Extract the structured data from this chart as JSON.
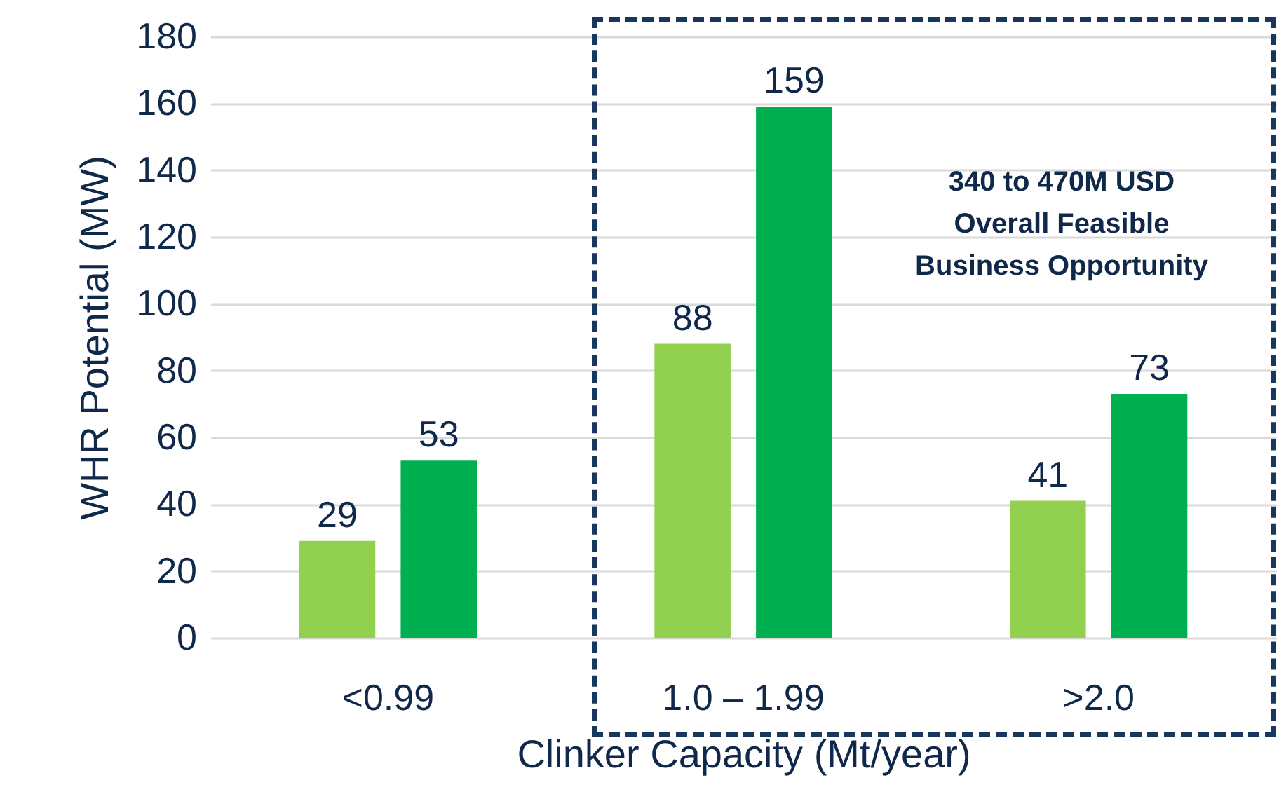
{
  "chart_data": {
    "type": "bar",
    "xlabel": "Clinker Capacity (Mt/year)",
    "ylabel": "WHR Potential (MW)",
    "categories": [
      "<0.99",
      "1.0 – 1.99",
      ">2.0"
    ],
    "series": [
      {
        "color": "#92d050",
        "values": [
          29,
          88,
          41
        ]
      },
      {
        "color": "#00b050",
        "values": [
          53,
          159,
          73
        ]
      }
    ],
    "ylim": [
      0,
      180
    ],
    "yticks": [
      0,
      20,
      40,
      60,
      80,
      100,
      120,
      140,
      160,
      180
    ],
    "grid": "y",
    "data_labels": true,
    "annotations": [
      "340 to 470M USD\nOverall Feasible\nBusiness Opportunity"
    ]
  }
}
